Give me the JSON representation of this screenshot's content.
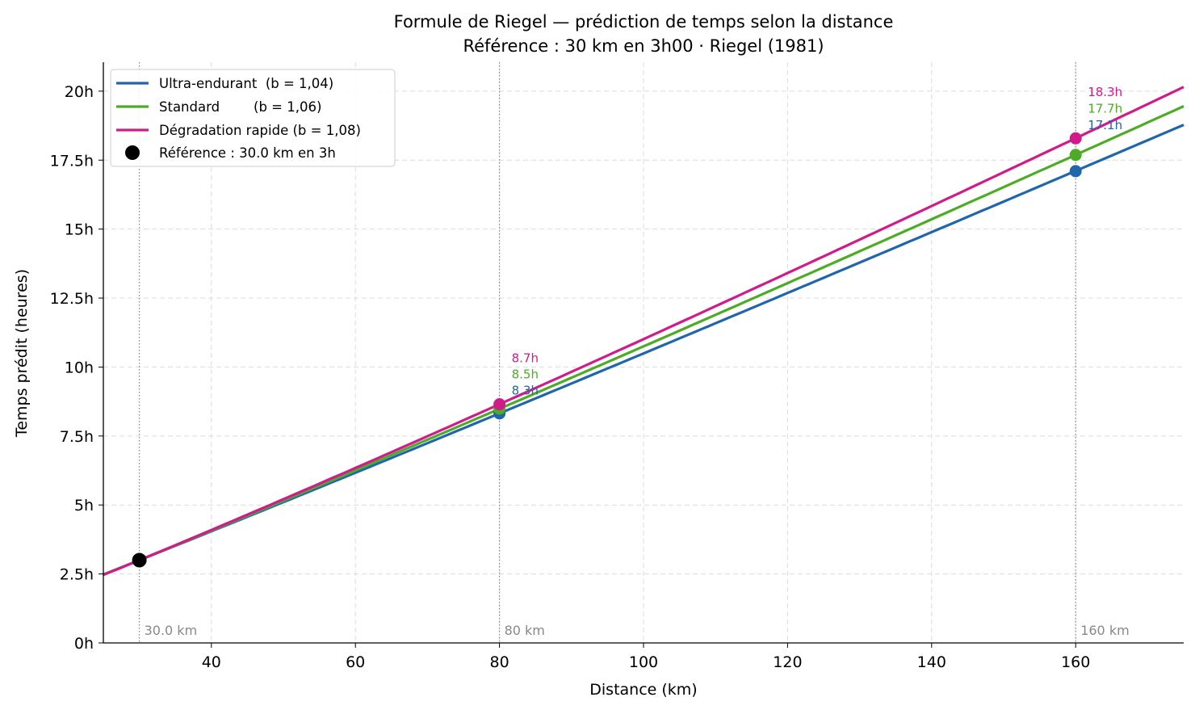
{
  "chart_data": {
    "type": "line",
    "title": "Formule de Riegel — prédiction de temps selon la distance",
    "subtitle": "Référence : 30 km en 3h00 · Riegel (1981)",
    "xlabel": "Distance (km)",
    "ylabel": "Temps prédit (heures)",
    "xlim": [
      25,
      175
    ],
    "ylim": [
      0,
      21.05
    ],
    "xticks": [
      40,
      60,
      80,
      100,
      120,
      140,
      160
    ],
    "xtick_labels": [
      "40",
      "60",
      "80",
      "100",
      "120",
      "140",
      "160"
    ],
    "yticks": [
      0,
      2.5,
      5,
      7.5,
      10,
      12.5,
      15,
      17.5,
      20
    ],
    "ytick_labels": [
      "0h",
      "2.5h",
      "5h",
      "7.5h",
      "10h",
      "12.5h",
      "15h",
      "17.5h",
      "20h"
    ],
    "grid": true,
    "legend_position": "top-left",
    "reference": {
      "distance": 30,
      "time": 3,
      "label": "Référence : 30.0 km en 3h",
      "color": "#000000"
    },
    "series": [
      {
        "name": "Ultra-endurant  (b = 1,04)",
        "exponent": 1.04,
        "color": "#2166ac",
        "points": [
          {
            "x": 80,
            "y": 8.32,
            "label": "8.3h"
          },
          {
            "x": 160,
            "y": 17.1,
            "label": "17.1h"
          }
        ]
      },
      {
        "name": "Standard        (b = 1,06)",
        "exponent": 1.06,
        "color": "#4dac26",
        "points": [
          {
            "x": 80,
            "y": 8.49,
            "label": "8.5h"
          },
          {
            "x": 160,
            "y": 17.69,
            "label": "17.7h"
          }
        ]
      },
      {
        "name": "Dégradation rapide (b = 1,08)",
        "exponent": 1.08,
        "color": "#d01c8b",
        "points": [
          {
            "x": 80,
            "y": 8.65,
            "label": "8.7h"
          },
          {
            "x": 160,
            "y": 18.29,
            "label": "18.3h"
          }
        ]
      }
    ],
    "vertical_markers": [
      {
        "x": 30,
        "label": "30.0 km"
      },
      {
        "x": 80,
        "label": "80 km"
      },
      {
        "x": 160,
        "label": "160 km"
      }
    ]
  }
}
